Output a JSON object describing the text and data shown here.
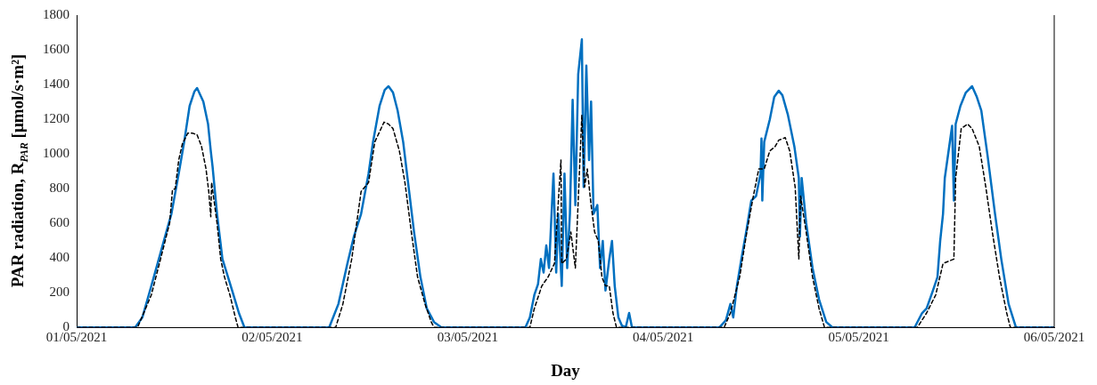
{
  "chart_data": {
    "type": "line",
    "xlabel": "Day",
    "ylabel": "PAR radiation, R$_{PAR}$ [μmol/s·m²]",
    "xlim": [
      "2021-05-01",
      "2021-05-06"
    ],
    "xticks": [
      {
        "value": "2021-05-01",
        "label": "01/05/2021"
      },
      {
        "value": "2021-05-02",
        "label": "02/05/2021"
      },
      {
        "value": "2021-05-03",
        "label": "03/05/2021"
      },
      {
        "value": "2021-05-04",
        "label": "04/05/2021"
      },
      {
        "value": "2021-05-05",
        "label": "05/05/2021"
      },
      {
        "value": "2021-05-06",
        "label": "06/05/2021"
      }
    ],
    "ylim": [
      0,
      1800
    ],
    "yticks": [
      0,
      200,
      400,
      600,
      800,
      1000,
      1200,
      1400,
      1600,
      1800
    ],
    "grid": false,
    "legend": false,
    "marker": "none",
    "series": [
      {
        "color": "#000000",
        "line_style": "dashed",
        "x": [
          "2021-05-01T00:00",
          "2021-05-01T07:29",
          "2021-05-01T09:10",
          "2021-05-01T10:18",
          "2021-05-01T11:25",
          "2021-05-01T11:46",
          "2021-05-01T12:06",
          "2021-05-01T12:32",
          "2021-05-01T12:59",
          "2021-05-01T13:39",
          "2021-05-01T14:12",
          "2021-05-01T14:47",
          "2021-05-01T15:20",
          "2021-05-01T15:53",
          "2021-05-01T16:13",
          "2021-05-01T16:28",
          "2021-05-01T16:34",
          "2021-05-01T17:14",
          "2021-05-01T17:41",
          "2021-05-01T18:09",
          "2021-05-01T18:49",
          "2021-05-01T19:29",
          "2021-05-01T19:49",
          "2021-05-02T07:48",
          "2021-05-02T08:41",
          "2021-05-02T09:46",
          "2021-05-02T10:55",
          "2021-05-02T11:50",
          "2021-05-02T12:36",
          "2021-05-02T13:44",
          "2021-05-02T14:17",
          "2021-05-02T14:50",
          "2021-05-02T15:37",
          "2021-05-02T16:18",
          "2021-05-02T17:05",
          "2021-05-02T17:51",
          "2021-05-02T18:46",
          "2021-05-02T19:32",
          "2021-05-02T19:52",
          "2021-05-03T07:38",
          "2021-05-03T08:11",
          "2021-05-03T09:06",
          "2021-05-03T09:52",
          "2021-05-03T10:39",
          "2021-05-03T11:27",
          "2021-05-03T11:33",
          "2021-05-03T12:07",
          "2021-05-03T12:40",
          "2021-05-03T13:13",
          "2021-05-03T14:01",
          "2021-05-03T14:21",
          "2021-05-03T14:41",
          "2021-05-03T15:09",
          "2021-05-03T15:35",
          "2021-05-03T16:02",
          "2021-05-03T16:29",
          "2021-05-03T16:55",
          "2021-05-03T17:23",
          "2021-05-03T17:50",
          "2021-05-03T18:16",
          "2021-05-04T07:29",
          "2021-05-04T08:15",
          "2021-05-04T09:23",
          "2021-05-04T10:16",
          "2021-05-04T11:04",
          "2021-05-04T11:44",
          "2021-05-04T12:24",
          "2021-05-04T13:05",
          "2021-05-04T13:45",
          "2021-05-04T14:11",
          "2021-05-04T14:59",
          "2021-05-04T15:32",
          "2021-05-04T16:12",
          "2021-05-04T16:39",
          "2021-05-04T16:52",
          "2021-05-04T17:33",
          "2021-05-04T18:20",
          "2021-05-04T19:08",
          "2021-05-04T19:48",
          "2021-05-05T07:12",
          "2021-05-05T08:20",
          "2021-05-05T09:27",
          "2021-05-05T10:21",
          "2021-05-05T11:41",
          "2021-05-05T11:54",
          "2021-05-05T12:35",
          "2021-05-05T13:22",
          "2021-05-05T13:55",
          "2021-05-05T14:48",
          "2021-05-05T15:36",
          "2021-05-05T16:24",
          "2021-05-05T17:17",
          "2021-05-05T18:10",
          "2021-05-05T18:37",
          "2021-05-06T00:00"
        ],
        "values": [
          0,
          0,
          187,
          394,
          602,
          794,
          799,
          965,
          1058,
          1120,
          1120,
          1110,
          1043,
          913,
          783,
          638,
          835,
          602,
          394,
          290,
          187,
          57,
          0,
          0,
          135,
          394,
          783,
          835,
          1069,
          1183,
          1172,
          1146,
          1017,
          835,
          550,
          290,
          135,
          31,
          0,
          0,
          109,
          239,
          290,
          368,
          965,
          368,
          394,
          550,
          342,
          1224,
          809,
          913,
          705,
          550,
          498,
          290,
          239,
          239,
          83,
          0,
          0,
          83,
          290,
          550,
          757,
          913,
          913,
          1017,
          1043,
          1079,
          1094,
          1017,
          809,
          394,
          757,
          550,
          290,
          109,
          0,
          0,
          83,
          187,
          368,
          394,
          861,
          1146,
          1172,
          1146,
          1043,
          809,
          550,
          290,
          83,
          0,
          0
        ]
      },
      {
        "color": "#0070c0",
        "line_style": "solid",
        "x": [
          "2021-05-01T00:00",
          "2021-05-01T07:11",
          "2021-05-01T08:04",
          "2021-05-01T09:10",
          "2021-05-01T10:18",
          "2021-05-01T10:51",
          "2021-05-01T11:38",
          "2021-05-01T12:32",
          "2021-05-01T13:12",
          "2021-05-01T13:52",
          "2021-05-01T14:27",
          "2021-05-01T14:47",
          "2021-05-01T15:33",
          "2021-05-01T16:08",
          "2021-05-01T16:28",
          "2021-05-01T16:41",
          "2021-05-01T17:14",
          "2021-05-01T17:54",
          "2021-05-01T18:35",
          "2021-05-01T19:15",
          "2021-05-01T19:55",
          "2021-05-01T20:36",
          "2021-05-02T07:00",
          "2021-05-02T08:08",
          "2021-05-02T09:14",
          "2021-05-02T10:02",
          "2021-05-02T10:55",
          "2021-05-02T11:50",
          "2021-05-02T12:23",
          "2021-05-02T13:11",
          "2021-05-02T13:49",
          "2021-05-02T14:17",
          "2021-05-02T14:50",
          "2021-05-02T15:24",
          "2021-05-02T16:05",
          "2021-05-02T16:45",
          "2021-05-02T17:25",
          "2021-05-02T18:12",
          "2021-05-02T18:59",
          "2021-05-02T19:52",
          "2021-05-02T20:47",
          "2021-05-03T07:05",
          "2021-05-03T07:38",
          "2021-05-03T08:11",
          "2021-05-03T08:38",
          "2021-05-03T08:59",
          "2021-05-03T09:19",
          "2021-05-03T09:39",
          "2021-05-03T09:59",
          "2021-05-03T10:32",
          "2021-05-03T10:52",
          "2021-05-03T11:07",
          "2021-05-03T11:33",
          "2021-05-03T11:53",
          "2021-05-03T12:13",
          "2021-05-03T12:33",
          "2021-05-03T12:53",
          "2021-05-03T13:13",
          "2021-05-03T13:34",
          "2021-05-03T14:01",
          "2021-05-03T14:14",
          "2021-05-03T14:34",
          "2021-05-03T14:54",
          "2021-05-03T15:09",
          "2021-05-03T15:27",
          "2021-05-03T15:55",
          "2021-05-03T16:15",
          "2021-05-03T16:35",
          "2021-05-03T16:55",
          "2021-05-03T17:23",
          "2021-05-03T17:43",
          "2021-05-03T18:03",
          "2021-05-03T18:30",
          "2021-05-03T18:56",
          "2021-05-03T19:24",
          "2021-05-03T19:49",
          "2021-05-03T20:10",
          "2021-05-04T06:55",
          "2021-05-04T07:42",
          "2021-05-04T08:15",
          "2021-05-04T08:36",
          "2021-05-04T09:03",
          "2021-05-04T09:36",
          "2021-05-04T10:11",
          "2021-05-04T10:49",
          "2021-05-04T11:24",
          "2021-05-04T11:57",
          "2021-05-04T12:04",
          "2021-05-04T12:10",
          "2021-05-04T12:24",
          "2021-05-04T13:05",
          "2021-05-04T13:38",
          "2021-05-04T14:11",
          "2021-05-04T14:38",
          "2021-05-04T15:19",
          "2021-05-04T16:06",
          "2021-05-04T16:39",
          "2021-05-04T16:47",
          "2021-05-04T17:00",
          "2021-05-04T17:33",
          "2021-05-04T18:20",
          "2021-05-04T19:08",
          "2021-05-04T20:01",
          "2021-05-04T20:47",
          "2021-05-05T06:52",
          "2021-05-05T07:47",
          "2021-05-05T08:20",
          "2021-05-05T09:07",
          "2021-05-05T09:40",
          "2021-05-05T10:00",
          "2021-05-05T10:21",
          "2021-05-05T10:34",
          "2021-05-05T11:28",
          "2021-05-05T11:41",
          "2021-05-05T11:54",
          "2021-05-05T12:29",
          "2021-05-05T13:09",
          "2021-05-05T13:55",
          "2021-05-05T14:30",
          "2021-05-05T15:03",
          "2021-05-05T15:49",
          "2021-05-05T16:44",
          "2021-05-05T17:30",
          "2021-05-05T18:24",
          "2021-05-05T19:18",
          "2021-05-06T00:00"
        ],
        "values": [
          0,
          0,
          57,
          239,
          430,
          524,
          654,
          887,
          1069,
          1276,
          1359,
          1380,
          1302,
          1172,
          1017,
          928,
          654,
          394,
          290,
          187,
          83,
          0,
          0,
          135,
          368,
          524,
          654,
          887,
          1069,
          1276,
          1369,
          1390,
          1354,
          1250,
          1069,
          809,
          550,
          290,
          109,
          31,
          0,
          0,
          57,
          187,
          249,
          394,
          316,
          472,
          342,
          887,
          316,
          654,
          239,
          887,
          342,
          654,
          1312,
          705,
          1458,
          1660,
          809,
          1509,
          965,
          1302,
          654,
          705,
          342,
          498,
          213,
          394,
          498,
          239,
          57,
          10,
          0,
          83,
          0,
          0,
          41,
          135,
          57,
          239,
          394,
          550,
          731,
          757,
          887,
          1089,
          731,
          1069,
          1198,
          1328,
          1364,
          1338,
          1224,
          1043,
          861,
          524,
          861,
          602,
          342,
          161,
          31,
          0,
          0,
          83,
          109,
          213,
          290,
          498,
          654,
          861,
          1162,
          731,
          1172,
          1276,
          1354,
          1390,
          1328,
          1250,
          991,
          654,
          394,
          135,
          0,
          0
        ]
      }
    ]
  }
}
